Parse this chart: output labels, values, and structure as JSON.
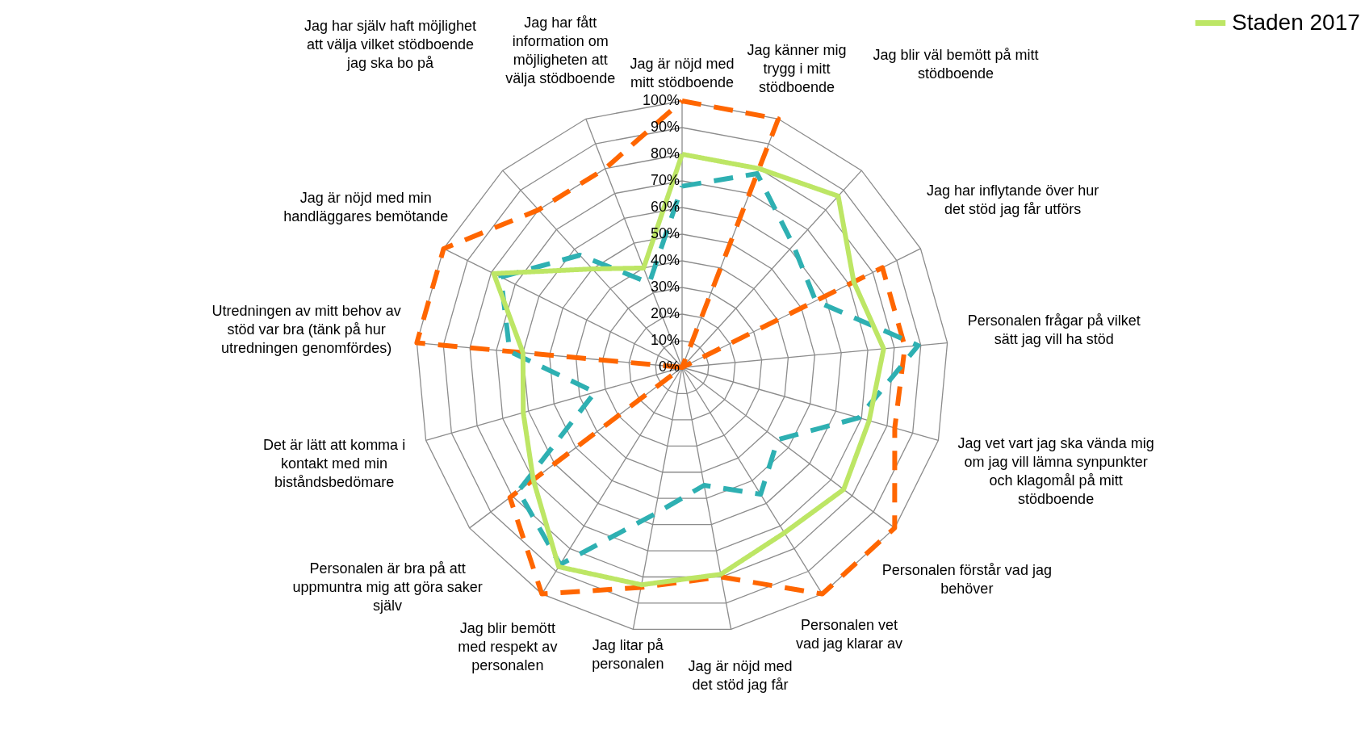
{
  "chart_data": {
    "type": "radar",
    "categories": [
      "Jag är nöjd med mitt stödboende",
      "Jag känner mig trygg i mitt stödboende",
      "Jag blir väl bemött på mitt stödboende",
      "Jag har inflytande över hur det stöd jag får utförs",
      "Personalen frågar på vilket sätt jag vill ha stöd",
      "Jag vet vart jag ska vända mig om jag vill lämna synpunkter och klagomål på mitt stödboende",
      "Personalen förstår vad jag behöver",
      "Personalen vet vad jag klarar av",
      "Jag är nöjd med det stöd jag får",
      "Jag litar på personalen",
      "Jag blir bemött med respekt av personalen",
      "Personalen är bra på att uppmuntra mig att göra saker själv",
      "Det är lätt att komma i kontakt med min biståndsbedömare",
      "Utredningen av mitt behov av stöd var bra (tänk på hur utredningen genomfördes)",
      "Jag är nöjd med min handläggares bemötande",
      "Jag har själv haft möjlighet att välja vilket stödboende jag ska bo på",
      "Jag har fått information om möjligheten att välja stödboende"
    ],
    "series": [
      {
        "color": "#ff6600",
        "line_style": "dashed",
        "values": [
          100,
          100,
          0,
          84,
          84,
          83,
          100,
          100,
          80,
          84,
          100,
          81,
          0,
          100,
          100,
          80,
          80
        ]
      },
      {
        "color": "#2eb0b2",
        "line_style": "dashed",
        "values": [
          68,
          78,
          62,
          56,
          89,
          69,
          45,
          56,
          45,
          56,
          87,
          77,
          34,
          65,
          76,
          57,
          34
        ]
      },
      {
        "name": "Staden 2017",
        "color": "#bde665",
        "line_style": "solid",
        "values": [
          80,
          80,
          87,
          72,
          76,
          73,
          76,
          73,
          79,
          83,
          88,
          70,
          62,
          60,
          79,
          50,
          40
        ]
      }
    ],
    "ylim": [
      0,
      100
    ],
    "yticks": [
      {
        "value": 0,
        "label": "0%"
      },
      {
        "value": 10,
        "label": "10%"
      },
      {
        "value": 20,
        "label": "20%"
      },
      {
        "value": 30,
        "label": "30%"
      },
      {
        "value": 40,
        "label": "40%"
      },
      {
        "value": 50,
        "label": "50%"
      },
      {
        "value": 60,
        "label": "60%"
      },
      {
        "value": 70,
        "label": "70%"
      },
      {
        "value": 80,
        "label": "80%"
      },
      {
        "value": 90,
        "label": "90%"
      },
      {
        "value": 100,
        "label": "100%"
      }
    ],
    "grid": true,
    "legend": "top right"
  }
}
